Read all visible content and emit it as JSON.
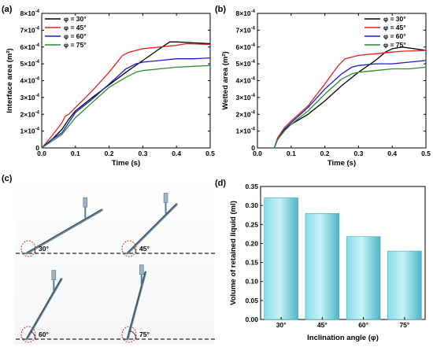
{
  "panels": {
    "a": "(a)",
    "b": "(b)",
    "c": "(c)",
    "d": "(d)"
  },
  "chart_data": [
    {
      "id": "a",
      "type": "line",
      "xlabel": "Time (s)",
      "ylabel": "Interface area (m²)",
      "xlim": [
        0,
        0.5
      ],
      "ylim": [
        0,
        0.0008
      ],
      "xticks": [
        "0.0",
        "0.1",
        "0.2",
        "0.3",
        "0.4",
        "0.5"
      ],
      "ytick_mantissas": [
        "0",
        "1",
        "2",
        "3",
        "4",
        "5",
        "6",
        "7",
        "8"
      ],
      "ytick_exp": "-4",
      "ytick_times": "×10",
      "legend_position": "top-left",
      "series": [
        {
          "name": "φ = 30°",
          "color": "#000000",
          "x": [
            0,
            0.03,
            0.06,
            0.08,
            0.1,
            0.15,
            0.2,
            0.25,
            0.3,
            0.35,
            0.38,
            0.4,
            0.45,
            0.5
          ],
          "y": [
            0,
            5e-05,
            0.00011,
            0.00017,
            0.00022,
            0.0003,
            0.000375,
            0.00045,
            0.00052,
            0.00059,
            0.00063,
            0.00063,
            0.000625,
            0.00062
          ]
        },
        {
          "name": "φ = 45°",
          "color": "#e0201b",
          "x": [
            0,
            0.03,
            0.06,
            0.07,
            0.08,
            0.1,
            0.15,
            0.2,
            0.24,
            0.26,
            0.3,
            0.35,
            0.4,
            0.43,
            0.5
          ],
          "y": [
            0,
            7e-05,
            0.00015,
            0.00019,
            0.0002,
            0.00024,
            0.00034,
            0.00045,
            0.00055,
            0.00057,
            0.00059,
            0.0006,
            0.00061,
            0.00062,
            0.000615
          ]
        },
        {
          "name": "φ = 60°",
          "color": "#1a1acc",
          "x": [
            0,
            0.03,
            0.06,
            0.08,
            0.1,
            0.15,
            0.2,
            0.25,
            0.28,
            0.3,
            0.35,
            0.4,
            0.45,
            0.5
          ],
          "y": [
            0,
            5e-05,
            9e-05,
            0.00015,
            0.00021,
            0.00029,
            0.00038,
            0.00047,
            0.0005,
            0.00051,
            0.00052,
            0.00053,
            0.00053,
            0.000535
          ]
        },
        {
          "name": "φ = 75°",
          "color": "#2e8b2e",
          "x": [
            0,
            0.03,
            0.06,
            0.08,
            0.1,
            0.15,
            0.2,
            0.25,
            0.28,
            0.3,
            0.35,
            0.4,
            0.45,
            0.5
          ],
          "y": [
            0,
            4e-05,
            8e-05,
            0.00013,
            0.00018,
            0.00027,
            0.00036,
            0.00042,
            0.00045,
            0.00046,
            0.00047,
            0.00048,
            0.000485,
            0.00049
          ]
        }
      ]
    },
    {
      "id": "b",
      "type": "line",
      "xlabel": "Time (s)",
      "ylabel": "Wetted area (m²)",
      "xlim": [
        0,
        0.5
      ],
      "ylim": [
        0,
        0.0008
      ],
      "xticks": [
        "0.0",
        "0.1",
        "0.2",
        "0.3",
        "0.4",
        "0.5"
      ],
      "ytick_mantissas": [
        "0",
        "1",
        "2",
        "3",
        "4",
        "5",
        "6",
        "7",
        "8"
      ],
      "ytick_exp": "-4",
      "ytick_times": "×10",
      "legend_position": "top-right",
      "series": [
        {
          "name": "φ = 30°",
          "color": "#000000",
          "x": [
            0.05,
            0.06,
            0.08,
            0.1,
            0.15,
            0.2,
            0.25,
            0.3,
            0.35,
            0.38,
            0.4,
            0.43,
            0.5
          ],
          "y": [
            0,
            6e-05,
            0.00011,
            0.00014,
            0.0002,
            0.00028,
            0.00037,
            0.00045,
            0.00052,
            0.00057,
            0.00059,
            0.0006,
            0.00058
          ]
        },
        {
          "name": "φ = 45°",
          "color": "#e0201b",
          "x": [
            0.05,
            0.06,
            0.08,
            0.1,
            0.15,
            0.2,
            0.24,
            0.26,
            0.3,
            0.35,
            0.4,
            0.43,
            0.5
          ],
          "y": [
            0,
            6e-05,
            0.00012,
            0.00016,
            0.00025,
            0.00038,
            0.00049,
            0.00053,
            0.00055,
            0.00056,
            0.00057,
            0.000575,
            0.00058
          ]
        },
        {
          "name": "φ = 60°",
          "color": "#1a1acc",
          "x": [
            0.05,
            0.06,
            0.08,
            0.1,
            0.15,
            0.2,
            0.25,
            0.28,
            0.3,
            0.35,
            0.4,
            0.45,
            0.5
          ],
          "y": [
            0,
            5e-05,
            0.00011,
            0.00015,
            0.00024,
            0.00035,
            0.00044,
            0.00048,
            0.00049,
            0.0005,
            0.0005,
            0.00051,
            0.00052
          ]
        },
        {
          "name": "φ = 75°",
          "color": "#2e8b2e",
          "x": [
            0.05,
            0.06,
            0.08,
            0.1,
            0.15,
            0.2,
            0.25,
            0.28,
            0.3,
            0.35,
            0.4,
            0.45,
            0.5
          ],
          "y": [
            0,
            5e-05,
            0.0001,
            0.00014,
            0.00022,
            0.00032,
            0.00041,
            0.00044,
            0.00045,
            0.00046,
            0.00047,
            0.00047,
            0.00048
          ]
        }
      ]
    },
    {
      "id": "d",
      "type": "bar",
      "xlabel": "Inclination angle (φ)",
      "ylabel": "Volume of retained liquid (ml)",
      "categories": [
        "30°",
        "45°",
        "60°",
        "75°"
      ],
      "values": [
        0.32,
        0.279,
        0.218,
        0.18
      ],
      "ylim": [
        0,
        0.35
      ],
      "yticks": [
        "0.00",
        "0.05",
        "0.10",
        "0.15",
        "0.20",
        "0.25",
        "0.30",
        "0.35"
      ],
      "bar_color": "#5fc9d6"
    }
  ],
  "photos": {
    "labels": [
      "30°",
      "45°",
      "60°",
      "75°"
    ],
    "angles_deg": [
      30,
      45,
      60,
      75
    ]
  }
}
